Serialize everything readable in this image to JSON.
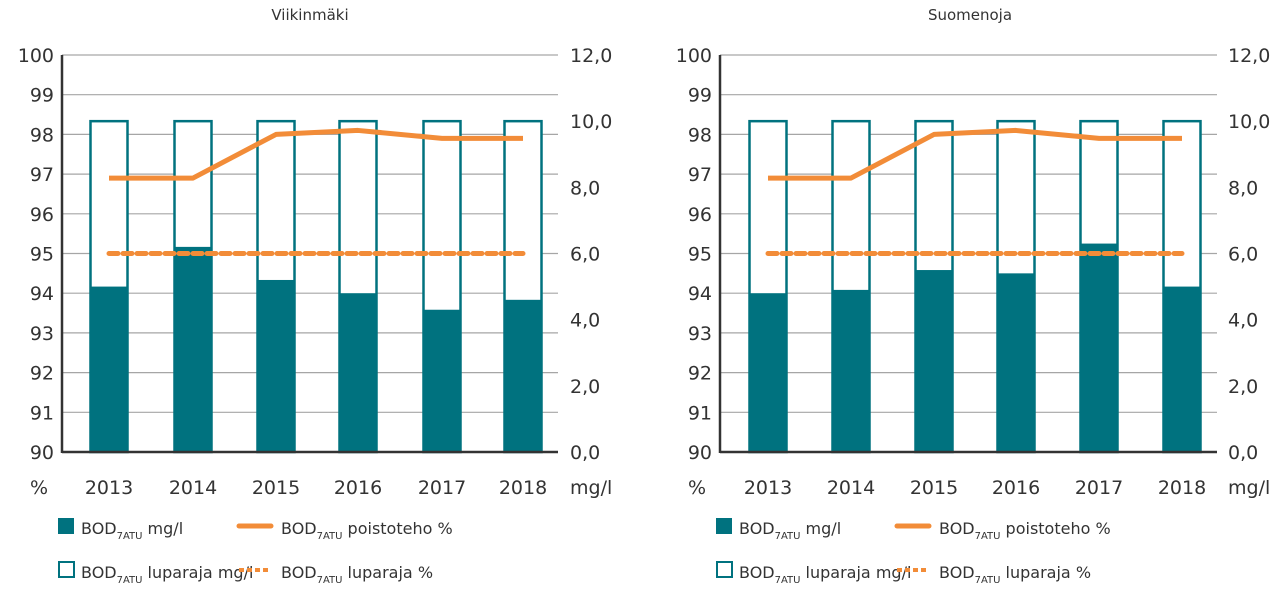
{
  "chart_data": [
    {
      "type": "bar",
      "title": "Viikinmäki",
      "categories": [
        "2013",
        "2014",
        "2015",
        "2016",
        "2017",
        "2018"
      ],
      "xlabel": "",
      "ylabel_left": "%",
      "ylabel_right": "mg/l",
      "ylim_left": [
        90,
        100
      ],
      "ylim_right": [
        0,
        12
      ],
      "yticks_left": [
        "90",
        "91",
        "92",
        "93",
        "94",
        "95",
        "96",
        "97",
        "98",
        "99",
        "100"
      ],
      "yticks_right": [
        "0,0",
        "2,0",
        "4,0",
        "6,0",
        "8,0",
        "10,0",
        "12,0"
      ],
      "grid": true,
      "series": [
        {
          "name": "BOD7ATU mg/l",
          "kind": "bar-filled",
          "axis": "right",
          "values": [
            5.0,
            6.2,
            5.2,
            4.8,
            4.3,
            4.6
          ]
        },
        {
          "name": "BOD7ATU luparaja mg/l",
          "kind": "bar-outline",
          "axis": "right",
          "values": [
            10.0,
            10.0,
            10.0,
            10.0,
            10.0,
            10.0
          ]
        },
        {
          "name": "BOD7ATU poistoteho %",
          "kind": "line",
          "axis": "left",
          "values": [
            96.9,
            96.9,
            98.0,
            98.1,
            97.9,
            97.9
          ]
        },
        {
          "name": "BOD7ATU luparaja %",
          "kind": "line-dashed",
          "axis": "left",
          "values": [
            95,
            95,
            95,
            95,
            95,
            95
          ]
        }
      ],
      "legend_placement": "bottom"
    },
    {
      "type": "bar",
      "title": "Suomenoja",
      "categories": [
        "2013",
        "2014",
        "2015",
        "2016",
        "2017",
        "2018"
      ],
      "xlabel": "",
      "ylabel_left": "%",
      "ylabel_right": "mg/l",
      "ylim_left": [
        90,
        100
      ],
      "ylim_right": [
        0,
        12
      ],
      "yticks_left": [
        "90",
        "91",
        "92",
        "93",
        "94",
        "95",
        "96",
        "97",
        "98",
        "99",
        "100"
      ],
      "yticks_right": [
        "0,0",
        "2,0",
        "4,0",
        "6,0",
        "8,0",
        "10,0",
        "12,0"
      ],
      "grid": true,
      "series": [
        {
          "name": "BOD7ATU mg/l",
          "kind": "bar-filled",
          "axis": "right",
          "values": [
            4.8,
            4.9,
            5.5,
            5.4,
            6.3,
            5.0
          ]
        },
        {
          "name": "BOD7ATU luparaja mg/l",
          "kind": "bar-outline",
          "axis": "right",
          "values": [
            10.0,
            10.0,
            10.0,
            10.0,
            10.0,
            10.0
          ]
        },
        {
          "name": "BOD7ATU poistoteho %",
          "kind": "line",
          "axis": "left",
          "values": [
            96.9,
            96.9,
            98.0,
            98.1,
            97.9,
            97.9
          ]
        },
        {
          "name": "BOD7ATU luparaja %",
          "kind": "line-dashed",
          "axis": "left",
          "values": [
            95,
            95,
            95,
            95,
            95,
            95
          ]
        }
      ],
      "legend_placement": "bottom"
    }
  ],
  "legend": {
    "items": [
      {
        "main": "BOD",
        "sub": "7ATU",
        "rest": " mg/l"
      },
      {
        "main": "BOD",
        "sub": "7ATU",
        "rest": " poistoteho %"
      },
      {
        "main": "BOD",
        "sub": "7ATU",
        "rest": " luparaja mg/l"
      },
      {
        "main": "BOD",
        "sub": "7ATU",
        "rest": " luparaja %"
      }
    ]
  },
  "colors": {
    "bar": "#00727F",
    "line": "#F28C38",
    "grid": "#A6A6A6",
    "axis": "#333333",
    "text": "#333333"
  }
}
